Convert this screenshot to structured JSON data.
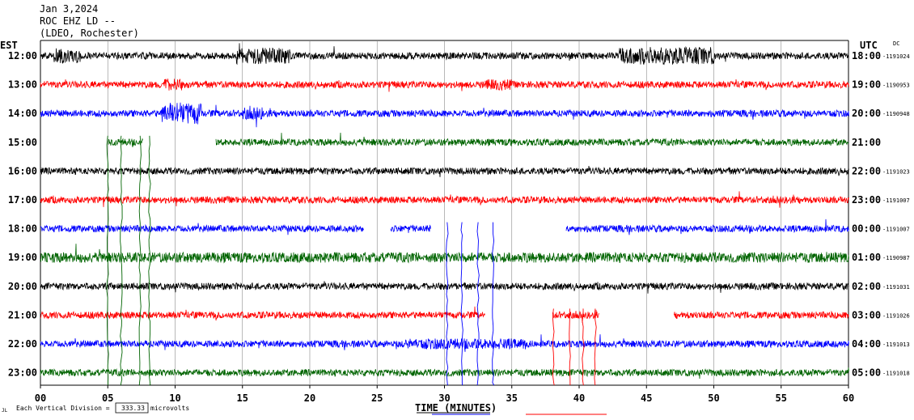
{
  "header": {
    "date": "Jan 3,2024",
    "station": "ROC EHZ LD --",
    "location": "(LDEO, Rochester)"
  },
  "labels": {
    "left_tz": "EST",
    "right_tz": "UTC",
    "dc": "DC",
    "footer_prefix": "Each Vertical Division =",
    "footer_value": "333.33",
    "footer_units": "microvolts",
    "corner_mark": "JL"
  },
  "chart_data": {
    "type": "line",
    "title": "",
    "xlabel": "TIME (MINUTES)",
    "ylabel": "",
    "xlim": [
      0,
      60
    ],
    "xticks": [
      "00",
      "05",
      "10",
      "15",
      "20",
      "25",
      "30",
      "35",
      "40",
      "45",
      "50",
      "55",
      "60"
    ],
    "grid": true,
    "vertical_division_microvolts": 333.33,
    "trace_colors": [
      "#000000",
      "#ff0000",
      "#0000ff",
      "#006400"
    ],
    "rows": [
      {
        "est": "12:00",
        "utc": "18:00",
        "dc": "-1191024"
      },
      {
        "est": "13:00",
        "utc": "19:00",
        "dc": "-1190953"
      },
      {
        "est": "14:00",
        "utc": "20:00",
        "dc": "-1190948"
      },
      {
        "est": "15:00",
        "utc": "21:00",
        "dc": ""
      },
      {
        "est": "16:00",
        "utc": "22:00",
        "dc": "-1191023"
      },
      {
        "est": "17:00",
        "utc": "23:00",
        "dc": "-1191007"
      },
      {
        "est": "18:00",
        "utc": "00:00",
        "dc": "-1191007"
      },
      {
        "est": "19:00",
        "utc": "01:00",
        "dc": "-1190987"
      },
      {
        "est": "20:00",
        "utc": "02:00",
        "dc": "-1191031"
      },
      {
        "est": "21:00",
        "utc": "03:00",
        "dc": "-1191026"
      },
      {
        "est": "22:00",
        "utc": "04:00",
        "dc": "-1191013"
      },
      {
        "est": "23:00",
        "utc": "05:00",
        "dc": "-1191018"
      }
    ],
    "gaps": [
      {
        "row": "15:00",
        "from_min": 0,
        "to_min": 5
      },
      {
        "row": "15:00",
        "from_min": 7.6,
        "to_min": 13
      },
      {
        "row": "18:00",
        "from_min": 24,
        "to_min": 26
      },
      {
        "row": "18:00",
        "from_min": 29,
        "to_min": 39
      },
      {
        "row": "21:00",
        "from_min": 33,
        "to_min": 38
      },
      {
        "row": "21:00",
        "from_min": 41.5,
        "to_min": 47
      }
    ],
    "bursts": [
      {
        "row": "12:00",
        "from_min": 1,
        "to_min": 3,
        "amp": 2.2
      },
      {
        "row": "12:00",
        "from_min": 14.5,
        "to_min": 18.5,
        "amp": 2.4
      },
      {
        "row": "12:00",
        "from_min": 43,
        "to_min": 50,
        "amp": 2.6
      },
      {
        "row": "13:00",
        "from_min": 9,
        "to_min": 10.5,
        "amp": 1.8
      },
      {
        "row": "13:00",
        "from_min": 33,
        "to_min": 35,
        "amp": 1.6
      },
      {
        "row": "14:00",
        "from_min": 9,
        "to_min": 12,
        "amp": 3.2
      },
      {
        "row": "14:00",
        "from_min": 15,
        "to_min": 16.5,
        "amp": 1.8
      },
      {
        "row": "19:00",
        "from_min": 0,
        "to_min": 60,
        "amp": 1.5
      },
      {
        "row": "22:00",
        "from_min": 27,
        "to_min": 36,
        "amp": 1.6
      }
    ],
    "spikes": [
      {
        "color": "#006400",
        "x_min": 5.0,
        "top_row": "15:00",
        "depth": "bottom"
      },
      {
        "color": "#006400",
        "x_min": 6.0,
        "top_row": "15:00",
        "depth": "bottom"
      },
      {
        "color": "#006400",
        "x_min": 7.4,
        "top_row": "15:00",
        "depth": "bottom"
      },
      {
        "color": "#006400",
        "x_min": 8.1,
        "top_row": "15:00",
        "depth": "bottom"
      },
      {
        "color": "#0000ff",
        "x_min": 30.2,
        "top_row": "18:00",
        "depth": "bottom"
      },
      {
        "color": "#0000ff",
        "x_min": 31.3,
        "top_row": "18:00",
        "depth": "bottom"
      },
      {
        "color": "#0000ff",
        "x_min": 32.5,
        "top_row": "18:00",
        "depth": "bottom"
      },
      {
        "color": "#0000ff",
        "x_min": 33.6,
        "top_row": "18:00",
        "depth": "bottom"
      },
      {
        "color": "#ff0000",
        "x_min": 38.1,
        "top_row": "21:00",
        "depth": "bottom"
      },
      {
        "color": "#ff0000",
        "x_min": 39.3,
        "top_row": "21:00",
        "depth": "bottom"
      },
      {
        "color": "#ff0000",
        "x_min": 40.3,
        "top_row": "21:00",
        "depth": "bottom"
      },
      {
        "color": "#ff0000",
        "x_min": 41.2,
        "top_row": "21:00",
        "depth": "bottom"
      }
    ]
  }
}
